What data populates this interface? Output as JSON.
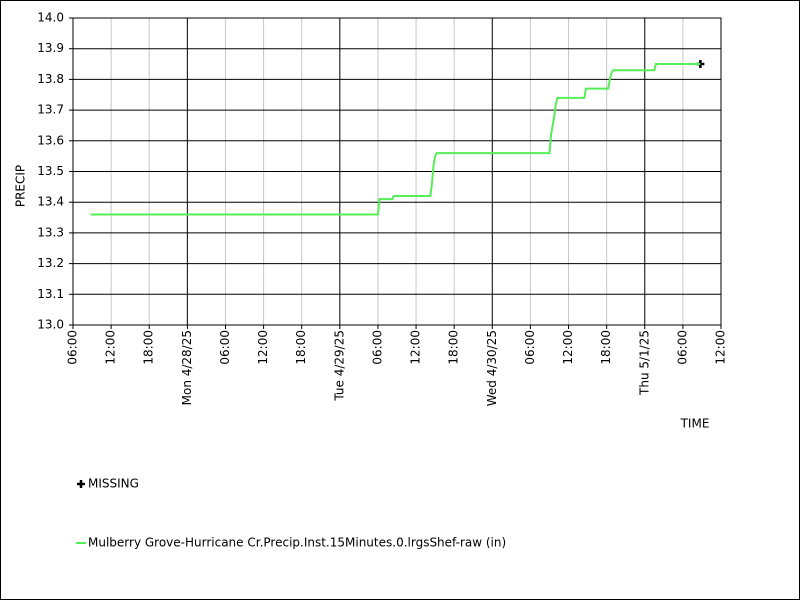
{
  "chart_data": {
    "type": "line",
    "y_label": "PRECIP",
    "x_label": "TIME",
    "xlim": [
      0,
      102
    ],
    "ylim": [
      13.0,
      14.0
    ],
    "xticks": [
      {
        "value": 0,
        "label": "06:00"
      },
      {
        "value": 6,
        "label": "12:00"
      },
      {
        "value": 12,
        "label": "18:00"
      },
      {
        "value": 18,
        "label": "Mon 4/28/25"
      },
      {
        "value": 24,
        "label": "06:00"
      },
      {
        "value": 30,
        "label": "12:00"
      },
      {
        "value": 36,
        "label": "18:00"
      },
      {
        "value": 42,
        "label": "Tue 4/29/25"
      },
      {
        "value": 48,
        "label": "06:00"
      },
      {
        "value": 54,
        "label": "12:00"
      },
      {
        "value": 60,
        "label": "18:00"
      },
      {
        "value": 66,
        "label": "Wed 4/30/25"
      },
      {
        "value": 72,
        "label": "06:00"
      },
      {
        "value": 78,
        "label": "12:00"
      },
      {
        "value": 84,
        "label": "18:00"
      },
      {
        "value": 90,
        "label": "Thu 5/1/25"
      },
      {
        "value": 96,
        "label": "06:00"
      },
      {
        "value": 102,
        "label": "12:00"
      }
    ],
    "yticks": [
      {
        "value": 13.0,
        "label": "13.0"
      },
      13.1,
      13.2,
      13.3,
      13.4,
      13.5,
      13.6,
      13.7,
      13.8,
      13.9,
      {
        "value": 14.0,
        "label": "14.0"
      }
    ],
    "grid": true,
    "series": [
      {
        "name": "MISSING",
        "color": "#000000",
        "marker": "plus",
        "x": [
          98.75
        ],
        "values": [
          13.85
        ]
      },
      {
        "name": "Mulberry Grove-Hurricane Cr.Precip.Inst.15Minutes.0.lrgsShef-raw (in)",
        "color": "#55ee55",
        "x": [
          2.75,
          48,
          48.25,
          50.25,
          50.5,
          56.25,
          56.5,
          56.75,
          57,
          57.25,
          75,
          75.25,
          75.75,
          76,
          76.25,
          80.5,
          80.75,
          84.25,
          84.5,
          84.75,
          85,
          91.5,
          91.75,
          98.75
        ],
        "values": [
          13.36,
          13.36,
          13.41,
          13.41,
          13.42,
          13.42,
          13.46,
          13.52,
          13.55,
          13.56,
          13.56,
          13.62,
          13.68,
          13.72,
          13.74,
          13.74,
          13.77,
          13.77,
          13.8,
          13.82,
          13.83,
          13.83,
          13.85,
          13.85
        ]
      }
    ]
  }
}
